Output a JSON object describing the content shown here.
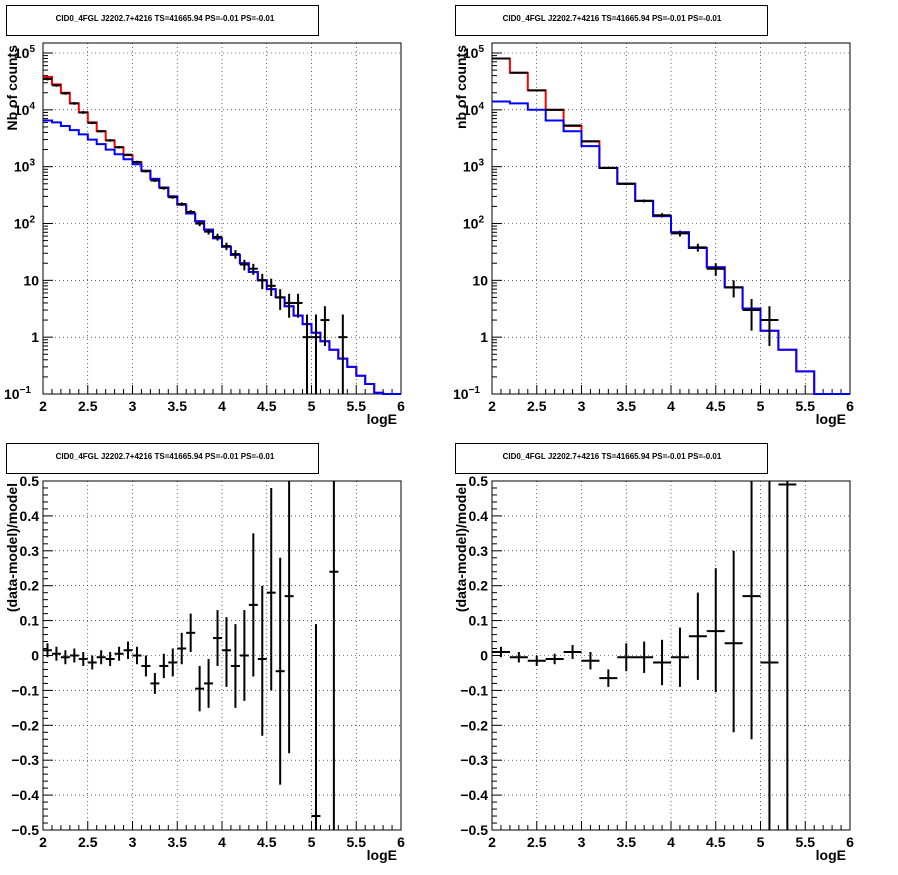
{
  "title": "CID0_4FGL J2202.7+4216 TS=41665.94 PS=-0.01 PS=-0.01",
  "colors": {
    "model_total": "#ff0000",
    "model_source": "#0000ff",
    "data": "#000000"
  },
  "chart_data": [
    {
      "type": "line",
      "title": "CID0_4FGL J2202.7+4216 TS=41665.94 PS=-0.01 PS=-0.01",
      "xlabel": "logE",
      "ylabel": "Nb of counts",
      "xlim": [
        2,
        6
      ],
      "ylim": [
        0.1,
        150000
      ],
      "yscale": "log",
      "grid": true,
      "xticks": [
        "2",
        "2.5",
        "3",
        "3.5",
        "4",
        "4.5",
        "5",
        "5.5",
        "6"
      ],
      "yticks": [
        {
          "v": 0.1,
          "base": "10",
          "exp": "−1"
        },
        {
          "v": 1,
          "base": "1",
          "exp": ""
        },
        {
          "v": 10,
          "base": "10",
          "exp": ""
        },
        {
          "v": 100,
          "base": "10",
          "exp": "2"
        },
        {
          "v": 1000,
          "base": "10",
          "exp": "3"
        },
        {
          "v": 10000,
          "base": "10",
          "exp": "4"
        },
        {
          "v": 100000,
          "base": "10",
          "exp": "5"
        }
      ],
      "bin_edges": [
        2,
        2.1,
        2.2,
        2.3,
        2.4,
        2.5,
        2.6,
        2.7,
        2.8,
        2.9,
        3,
        3.1,
        3.2,
        3.3,
        3.4,
        3.5,
        3.6,
        3.7,
        3.8,
        3.9,
        4,
        4.1,
        4.2,
        4.3,
        4.4,
        4.5,
        4.6,
        4.7,
        4.8,
        4.9,
        5,
        5.1,
        5.2,
        5.3,
        5.4,
        5.5,
        5.6,
        5.7,
        5.8,
        5.9,
        6
      ],
      "series": [
        {
          "color": "#ff0000",
          "values": [
            38000,
            28000,
            20000,
            13000,
            9000,
            6000,
            4200,
            2900,
            2200,
            1600,
            1200,
            850,
            610,
            430,
            300,
            215,
            150,
            110,
            78,
            55,
            39,
            28,
            20,
            14,
            10,
            7,
            5,
            3.5,
            2.4,
            1.7,
            1.2,
            0.85,
            0.6,
            0.42,
            0.3,
            0.21,
            0.15,
            0.105,
            0.075,
            0.055
          ]
        },
        {
          "color": "#0000ff",
          "values": [
            6500,
            6000,
            5200,
            4400,
            3700,
            3000,
            2500,
            2000,
            1650,
            1350,
            1100,
            850,
            610,
            430,
            300,
            215,
            150,
            110,
            78,
            55,
            39,
            28,
            20,
            14,
            10,
            7,
            5,
            3.5,
            2.4,
            1.7,
            1.2,
            0.85,
            0.6,
            0.42,
            0.3,
            0.21,
            0.15,
            0.105,
            0.075,
            0.055
          ]
        }
      ],
      "points": [
        {
          "x": 2.05,
          "y": 35000,
          "lo": 33000,
          "hi": 37000
        },
        {
          "x": 2.15,
          "y": 27000,
          "lo": 25500,
          "hi": 28500
        },
        {
          "x": 2.25,
          "y": 19500,
          "lo": 18500,
          "hi": 20500
        },
        {
          "x": 2.35,
          "y": 13000,
          "lo": 12300,
          "hi": 13700
        },
        {
          "x": 2.45,
          "y": 9000,
          "lo": 8500,
          "hi": 9500
        },
        {
          "x": 2.55,
          "y": 5900,
          "lo": 5600,
          "hi": 6200
        },
        {
          "x": 2.65,
          "y": 4200,
          "lo": 4000,
          "hi": 4400
        },
        {
          "x": 2.75,
          "y": 2900,
          "lo": 2750,
          "hi": 3050
        },
        {
          "x": 2.85,
          "y": 2200,
          "lo": 2090,
          "hi": 2310
        },
        {
          "x": 2.95,
          "y": 1620,
          "lo": 1540,
          "hi": 1700
        },
        {
          "x": 3.05,
          "y": 1210,
          "lo": 1150,
          "hi": 1270
        },
        {
          "x": 3.15,
          "y": 830,
          "lo": 790,
          "hi": 870
        },
        {
          "x": 3.25,
          "y": 570,
          "lo": 540,
          "hi": 600
        },
        {
          "x": 3.35,
          "y": 420,
          "lo": 395,
          "hi": 445
        },
        {
          "x": 3.45,
          "y": 290,
          "lo": 273,
          "hi": 307
        },
        {
          "x": 3.55,
          "y": 220,
          "lo": 205,
          "hi": 235
        },
        {
          "x": 3.65,
          "y": 160,
          "lo": 148,
          "hi": 172
        },
        {
          "x": 3.75,
          "y": 100,
          "lo": 90,
          "hi": 110
        },
        {
          "x": 3.85,
          "y": 72,
          "lo": 64,
          "hi": 80
        },
        {
          "x": 3.95,
          "y": 58,
          "lo": 50,
          "hi": 66
        },
        {
          "x": 4.05,
          "y": 40,
          "lo": 34,
          "hi": 46
        },
        {
          "x": 4.15,
          "y": 29,
          "lo": 24,
          "hi": 34
        },
        {
          "x": 4.25,
          "y": 19,
          "lo": 15,
          "hi": 23
        },
        {
          "x": 4.35,
          "y": 16,
          "lo": 12.5,
          "hi": 19.5
        },
        {
          "x": 4.45,
          "y": 10,
          "lo": 7,
          "hi": 13
        },
        {
          "x": 4.55,
          "y": 8,
          "lo": 5.3,
          "hi": 10.7
        },
        {
          "x": 4.65,
          "y": 5,
          "lo": 3,
          "hi": 7
        },
        {
          "x": 4.75,
          "y": 4,
          "lo": 2.2,
          "hi": 5.8
        },
        {
          "x": 4.85,
          "y": 4,
          "lo": 2.2,
          "hi": 5.8
        },
        {
          "x": 4.95,
          "y": 1,
          "lo": 0.1,
          "hi": 2.5
        },
        {
          "x": 5.05,
          "y": 1,
          "lo": 0.1,
          "hi": 2.5
        },
        {
          "x": 5.15,
          "y": 2,
          "lo": 0.7,
          "hi": 3.5
        },
        {
          "x": 5.35,
          "y": 1,
          "lo": 0.1,
          "hi": 2.5
        }
      ]
    },
    {
      "type": "line",
      "title": "CID0_4FGL J2202.7+4216 TS=41665.94 PS=-0.01 PS=-0.01",
      "xlabel": "logE",
      "ylabel": "nb of counts",
      "xlim": [
        2,
        6
      ],
      "ylim": [
        0.1,
        150000
      ],
      "yscale": "log",
      "grid": true,
      "xticks": [
        "2",
        "2.5",
        "3",
        "3.5",
        "4",
        "4.5",
        "5",
        "5.5",
        "6"
      ],
      "yticks": [
        {
          "v": 0.1,
          "base": "10",
          "exp": "−1"
        },
        {
          "v": 1,
          "base": "1",
          "exp": ""
        },
        {
          "v": 10,
          "base": "10",
          "exp": ""
        },
        {
          "v": 100,
          "base": "10",
          "exp": "2"
        },
        {
          "v": 1000,
          "base": "10",
          "exp": "3"
        },
        {
          "v": 10000,
          "base": "10",
          "exp": "4"
        },
        {
          "v": 100000,
          "base": "10",
          "exp": "5"
        }
      ],
      "bin_edges": [
        2,
        2.2,
        2.4,
        2.6,
        2.8,
        3,
        3.2,
        3.4,
        3.6,
        3.8,
        4,
        4.2,
        4.4,
        4.6,
        4.8,
        5,
        5.2,
        5.4,
        5.6,
        5.8,
        6
      ],
      "series": [
        {
          "color": "#ff0000",
          "values": [
            80000,
            45000,
            22000,
            10000,
            5200,
            2800,
            950,
            500,
            250,
            135,
            70,
            37,
            17,
            7.5,
            3.2,
            1.3,
            0.6,
            0.25,
            0.1,
            0.05
          ]
        },
        {
          "color": "#0000ff",
          "values": [
            14000,
            13000,
            10000,
            6500,
            4200,
            2300,
            950,
            500,
            250,
            135,
            70,
            37,
            17,
            7.5,
            3.2,
            1.3,
            0.6,
            0.25,
            0.1,
            0.05
          ]
        }
      ],
      "points": [
        {
          "x": 2.1,
          "y": 80000,
          "lo": 79000,
          "hi": 81000
        },
        {
          "x": 2.3,
          "y": 45000,
          "lo": 44200,
          "hi": 45800
        },
        {
          "x": 2.5,
          "y": 22000,
          "lo": 21500,
          "hi": 22500
        },
        {
          "x": 2.7,
          "y": 10000,
          "lo": 9800,
          "hi": 10200
        },
        {
          "x": 2.9,
          "y": 5300,
          "lo": 5150,
          "hi": 5450
        },
        {
          "x": 3.1,
          "y": 2780,
          "lo": 2680,
          "hi": 2880
        },
        {
          "x": 3.3,
          "y": 950,
          "lo": 910,
          "hi": 990
        },
        {
          "x": 3.5,
          "y": 500,
          "lo": 475,
          "hi": 525
        },
        {
          "x": 3.7,
          "y": 250,
          "lo": 235,
          "hi": 265
        },
        {
          "x": 3.9,
          "y": 140,
          "lo": 128,
          "hi": 152
        },
        {
          "x": 4.1,
          "y": 67,
          "lo": 59,
          "hi": 75
        },
        {
          "x": 4.3,
          "y": 38,
          "lo": 32,
          "hi": 44
        },
        {
          "x": 4.5,
          "y": 16,
          "lo": 12,
          "hi": 20
        },
        {
          "x": 4.7,
          "y": 7.5,
          "lo": 5,
          "hi": 10
        },
        {
          "x": 4.9,
          "y": 3,
          "lo": 1.3,
          "hi": 4.7
        },
        {
          "x": 5.1,
          "y": 2,
          "lo": 0.7,
          "hi": 3.5
        }
      ]
    },
    {
      "type": "scatter",
      "title": "CID0_4FGL J2202.7+4216 TS=41665.94 PS=-0.01 PS=-0.01",
      "xlabel": "logE",
      "ylabel": "(data-model)/model",
      "xlim": [
        2,
        6
      ],
      "ylim": [
        -0.5,
        0.5
      ],
      "grid": true,
      "xticks": [
        "2",
        "2.5",
        "3",
        "3.5",
        "4",
        "4.5",
        "5",
        "5.5",
        "6"
      ],
      "yticks": [
        "−0.5",
        "−0.4",
        "−0.3",
        "−0.2",
        "−0.1",
        "0",
        "0.1",
        "0.2",
        "0.3",
        "0.4",
        "0.5"
      ],
      "points": [
        {
          "x": 2.05,
          "y": 0.015,
          "lo": -0.005,
          "hi": 0.035
        },
        {
          "x": 2.15,
          "y": 0.005,
          "lo": -0.015,
          "hi": 0.025
        },
        {
          "x": 2.25,
          "y": -0.005,
          "lo": -0.025,
          "hi": 0.015
        },
        {
          "x": 2.35,
          "y": 0.0,
          "lo": -0.02,
          "hi": 0.02
        },
        {
          "x": 2.45,
          "y": -0.01,
          "lo": -0.03,
          "hi": 0.01
        },
        {
          "x": 2.55,
          "y": -0.02,
          "lo": -0.04,
          "hi": 0.0
        },
        {
          "x": 2.65,
          "y": -0.005,
          "lo": -0.025,
          "hi": 0.015
        },
        {
          "x": 2.75,
          "y": -0.01,
          "lo": -0.03,
          "hi": 0.01
        },
        {
          "x": 2.85,
          "y": 0.005,
          "lo": -0.015,
          "hi": 0.025
        },
        {
          "x": 2.95,
          "y": 0.015,
          "lo": -0.01,
          "hi": 0.04
        },
        {
          "x": 3.05,
          "y": 0.0,
          "lo": -0.025,
          "hi": 0.025
        },
        {
          "x": 3.15,
          "y": -0.03,
          "lo": -0.06,
          "hi": 0.0
        },
        {
          "x": 3.25,
          "y": -0.08,
          "lo": -0.11,
          "hi": -0.05
        },
        {
          "x": 3.35,
          "y": -0.03,
          "lo": -0.065,
          "hi": 0.005
        },
        {
          "x": 3.45,
          "y": -0.02,
          "lo": -0.06,
          "hi": 0.02
        },
        {
          "x": 3.55,
          "y": 0.02,
          "lo": -0.025,
          "hi": 0.065
        },
        {
          "x": 3.65,
          "y": 0.065,
          "lo": 0.01,
          "hi": 0.12
        },
        {
          "x": 3.75,
          "y": -0.095,
          "lo": -0.16,
          "hi": -0.03
        },
        {
          "x": 3.85,
          "y": -0.08,
          "lo": -0.15,
          "hi": -0.01
        },
        {
          "x": 3.95,
          "y": 0.05,
          "lo": -0.03,
          "hi": 0.13
        },
        {
          "x": 4.05,
          "y": 0.015,
          "lo": -0.09,
          "hi": 0.11
        },
        {
          "x": 4.15,
          "y": -0.03,
          "lo": -0.15,
          "hi": 0.09
        },
        {
          "x": 4.25,
          "y": 0.0,
          "lo": -0.13,
          "hi": 0.13
        },
        {
          "x": 4.35,
          "y": 0.145,
          "lo": -0.06,
          "hi": 0.35
        },
        {
          "x": 4.45,
          "y": -0.01,
          "lo": -0.23,
          "hi": 0.2
        },
        {
          "x": 4.55,
          "y": 0.18,
          "lo": -0.1,
          "hi": 0.48
        },
        {
          "x": 4.65,
          "y": -0.045,
          "lo": -0.37,
          "hi": 0.28
        },
        {
          "x": 4.75,
          "y": 0.17,
          "lo": -0.28,
          "hi": 0.6
        },
        {
          "x": 5.05,
          "y": -0.46,
          "lo": -0.6,
          "hi": 0.09
        },
        {
          "x": 5.25,
          "y": 0.24,
          "lo": -0.6,
          "hi": 0.6
        }
      ]
    },
    {
      "type": "scatter",
      "title": "CID0_4FGL J2202.7+4216 TS=41665.94 PS=-0.01 PS=-0.01",
      "xlabel": "logE",
      "ylabel": "(data-model)/model",
      "xlim": [
        2,
        6
      ],
      "ylim": [
        -0.5,
        0.5
      ],
      "grid": true,
      "xticks": [
        "2",
        "2.5",
        "3",
        "3.5",
        "4",
        "4.5",
        "5",
        "5.5",
        "6"
      ],
      "yticks": [
        "−0.5",
        "−0.4",
        "−0.3",
        "−0.2",
        "−0.1",
        "0",
        "0.1",
        "0.2",
        "0.3",
        "0.4",
        "0.5"
      ],
      "points": [
        {
          "x": 2.1,
          "y": 0.01,
          "lo": -0.005,
          "hi": 0.025
        },
        {
          "x": 2.3,
          "y": -0.005,
          "lo": -0.02,
          "hi": 0.01
        },
        {
          "x": 2.5,
          "y": -0.015,
          "lo": -0.03,
          "hi": 0.0
        },
        {
          "x": 2.7,
          "y": -0.01,
          "lo": -0.025,
          "hi": 0.005
        },
        {
          "x": 2.9,
          "y": 0.01,
          "lo": -0.01,
          "hi": 0.03
        },
        {
          "x": 3.1,
          "y": -0.015,
          "lo": -0.04,
          "hi": 0.01
        },
        {
          "x": 3.3,
          "y": -0.065,
          "lo": -0.09,
          "hi": -0.04
        },
        {
          "x": 3.5,
          "y": -0.005,
          "lo": -0.045,
          "hi": 0.035
        },
        {
          "x": 3.7,
          "y": -0.005,
          "lo": -0.05,
          "hi": 0.04
        },
        {
          "x": 3.9,
          "y": -0.02,
          "lo": -0.085,
          "hi": 0.045
        },
        {
          "x": 4.1,
          "y": -0.005,
          "lo": -0.09,
          "hi": 0.08
        },
        {
          "x": 4.3,
          "y": 0.055,
          "lo": -0.07,
          "hi": 0.18
        },
        {
          "x": 4.5,
          "y": 0.07,
          "lo": -0.105,
          "hi": 0.25
        },
        {
          "x": 4.7,
          "y": 0.035,
          "lo": -0.22,
          "hi": 0.3
        },
        {
          "x": 4.9,
          "y": 0.17,
          "lo": -0.24,
          "hi": 0.58
        },
        {
          "x": 5.1,
          "y": -0.02,
          "lo": -0.6,
          "hi": 0.6
        },
        {
          "x": 5.3,
          "y": 0.49,
          "lo": -0.6,
          "hi": 0.6
        }
      ]
    }
  ]
}
